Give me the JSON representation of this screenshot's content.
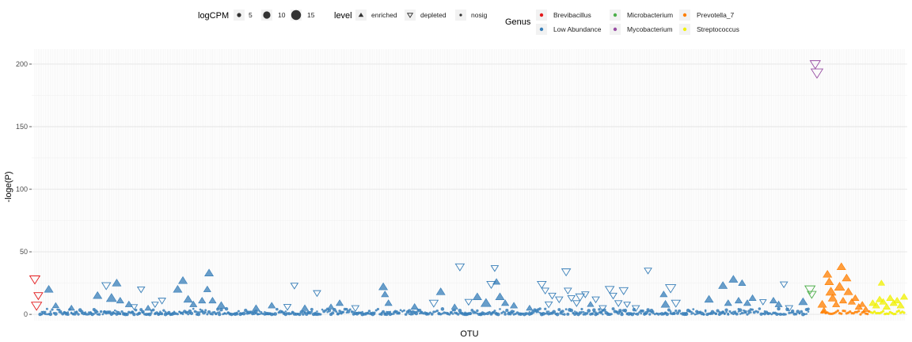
{
  "chart_data": {
    "type": "scatter",
    "title": "",
    "xlabel": "OTU",
    "ylabel": "-loge(P)",
    "ylim": [
      -5,
      212
    ],
    "y_ticks": [
      0,
      50,
      100,
      150,
      200
    ],
    "n_otus": 500,
    "grid": true,
    "legend_position": "top",
    "legends": {
      "size": {
        "title": "logCPM",
        "entries": [
          {
            "label": "5",
            "value": 5
          },
          {
            "label": "10",
            "value": 10
          },
          {
            "label": "15",
            "value": 15
          }
        ]
      },
      "shape": {
        "title": "level",
        "entries": [
          {
            "label": "enriched",
            "shape": "triangle-up"
          },
          {
            "label": "depleted",
            "shape": "triangle-down"
          },
          {
            "label": "nosig",
            "shape": "dot"
          }
        ]
      },
      "color": {
        "title": "Genus",
        "entries": [
          {
            "label": "Brevibacillus",
            "color": "#e41a1c"
          },
          {
            "label": "Low Abundance",
            "color": "#377eb8"
          },
          {
            "label": "Microbacterium",
            "color": "#4daf4a"
          },
          {
            "label": "Mycobacterium",
            "color": "#984ea3"
          },
          {
            "label": "Prevotella_7",
            "color": "#ff7f00"
          },
          {
            "label": "Streptococcus",
            "color": "#f0f000"
          }
        ]
      }
    },
    "genus_ranges": [
      {
        "genus": "Brevibacillus",
        "x": [
          1,
          3
        ]
      },
      {
        "genus": "Low Abundance",
        "x": [
          4,
          445
        ]
      },
      {
        "genus": "Microbacterium",
        "x": [
          446,
          448
        ]
      },
      {
        "genus": "Mycobacterium",
        "x": [
          449,
          452
        ]
      },
      {
        "genus": "Prevotella_7",
        "x": [
          453,
          480
        ]
      },
      {
        "genus": "Streptococcus",
        "x": [
          481,
          500
        ]
      }
    ],
    "points": [
      {
        "x": 1,
        "y": 28,
        "level": "depleted",
        "genus": "Brevibacillus",
        "logCPM": 10
      },
      {
        "x": 2,
        "y": 7,
        "level": "depleted",
        "genus": "Brevibacillus",
        "logCPM": 10
      },
      {
        "x": 3,
        "y": 15,
        "level": "depleted",
        "genus": "Brevibacillus",
        "logCPM": 8
      },
      {
        "x": 9,
        "y": 20,
        "level": "enriched",
        "genus": "Low Abundance",
        "logCPM": 8
      },
      {
        "x": 13,
        "y": 7,
        "level": "enriched",
        "genus": "Low Abundance",
        "logCPM": 5
      },
      {
        "x": 22,
        "y": 5,
        "level": "enriched",
        "genus": "Low Abundance",
        "logCPM": 5
      },
      {
        "x": 37,
        "y": 15,
        "level": "enriched",
        "genus": "Low Abundance",
        "logCPM": 8
      },
      {
        "x": 42,
        "y": 23,
        "level": "depleted",
        "genus": "Low Abundance",
        "logCPM": 8
      },
      {
        "x": 45,
        "y": 13,
        "level": "enriched",
        "genus": "Low Abundance",
        "logCPM": 10
      },
      {
        "x": 48,
        "y": 25,
        "level": "enriched",
        "genus": "Low Abundance",
        "logCPM": 8
      },
      {
        "x": 50,
        "y": 11,
        "level": "enriched",
        "genus": "Low Abundance",
        "logCPM": 6
      },
      {
        "x": 55,
        "y": 8,
        "level": "enriched",
        "genus": "Low Abundance",
        "logCPM": 6
      },
      {
        "x": 58,
        "y": 6,
        "level": "depleted",
        "genus": "Low Abundance",
        "logCPM": 5
      },
      {
        "x": 62,
        "y": 20,
        "level": "depleted",
        "genus": "Low Abundance",
        "logCPM": 6
      },
      {
        "x": 66,
        "y": 5,
        "level": "enriched",
        "genus": "Low Abundance",
        "logCPM": 5
      },
      {
        "x": 70,
        "y": 8,
        "level": "depleted",
        "genus": "Low Abundance",
        "logCPM": 5
      },
      {
        "x": 74,
        "y": 11,
        "level": "depleted",
        "genus": "Low Abundance",
        "logCPM": 6
      },
      {
        "x": 83,
        "y": 20,
        "level": "enriched",
        "genus": "Low Abundance",
        "logCPM": 8
      },
      {
        "x": 86,
        "y": 27,
        "level": "enriched",
        "genus": "Low Abundance",
        "logCPM": 8
      },
      {
        "x": 89,
        "y": 12,
        "level": "enriched",
        "genus": "Low Abundance",
        "logCPM": 8
      },
      {
        "x": 92,
        "y": 8,
        "level": "enriched",
        "genus": "Low Abundance",
        "logCPM": 6
      },
      {
        "x": 97,
        "y": 11,
        "level": "enriched",
        "genus": "Low Abundance",
        "logCPM": 6
      },
      {
        "x": 100,
        "y": 20,
        "level": "enriched",
        "genus": "Low Abundance",
        "logCPM": 6
      },
      {
        "x": 101,
        "y": 33,
        "level": "enriched",
        "genus": "Low Abundance",
        "logCPM": 8
      },
      {
        "x": 103,
        "y": 11,
        "level": "enriched",
        "genus": "Low Abundance",
        "logCPM": 6
      },
      {
        "x": 108,
        "y": 7,
        "level": "enriched",
        "genus": "Low Abundance",
        "logCPM": 8
      },
      {
        "x": 128,
        "y": 5,
        "level": "enriched",
        "genus": "Low Abundance",
        "logCPM": 6
      },
      {
        "x": 137,
        "y": 7,
        "level": "enriched",
        "genus": "Low Abundance",
        "logCPM": 6
      },
      {
        "x": 146,
        "y": 6,
        "level": "depleted",
        "genus": "Low Abundance",
        "logCPM": 6
      },
      {
        "x": 150,
        "y": 23,
        "level": "depleted",
        "genus": "Low Abundance",
        "logCPM": 6
      },
      {
        "x": 156,
        "y": 5,
        "level": "enriched",
        "genus": "Low Abundance",
        "logCPM": 6
      },
      {
        "x": 163,
        "y": 17,
        "level": "depleted",
        "genus": "Low Abundance",
        "logCPM": 6
      },
      {
        "x": 171,
        "y": 6,
        "level": "enriched",
        "genus": "Low Abundance",
        "logCPM": 5
      },
      {
        "x": 176,
        "y": 9,
        "level": "enriched",
        "genus": "Low Abundance",
        "logCPM": 6
      },
      {
        "x": 185,
        "y": 5,
        "level": "depleted",
        "genus": "Low Abundance",
        "logCPM": 6
      },
      {
        "x": 201,
        "y": 22,
        "level": "enriched",
        "genus": "Low Abundance",
        "logCPM": 8
      },
      {
        "x": 202,
        "y": 16,
        "level": "enriched",
        "genus": "Low Abundance",
        "logCPM": 6
      },
      {
        "x": 204,
        "y": 9,
        "level": "enriched",
        "genus": "Low Abundance",
        "logCPM": 6
      },
      {
        "x": 219,
        "y": 6,
        "level": "enriched",
        "genus": "Low Abundance",
        "logCPM": 6
      },
      {
        "x": 230,
        "y": 9,
        "level": "depleted",
        "genus": "Low Abundance",
        "logCPM": 8
      },
      {
        "x": 234,
        "y": 18,
        "level": "enriched",
        "genus": "Low Abundance",
        "logCPM": 8
      },
      {
        "x": 242,
        "y": 6,
        "level": "enriched",
        "genus": "Low Abundance",
        "logCPM": 5
      },
      {
        "x": 245,
        "y": 38,
        "level": "depleted",
        "genus": "Low Abundance",
        "logCPM": 8
      },
      {
        "x": 250,
        "y": 10,
        "level": "depleted",
        "genus": "Low Abundance",
        "logCPM": 6
      },
      {
        "x": 255,
        "y": 14,
        "level": "enriched",
        "genus": "Low Abundance",
        "logCPM": 8
      },
      {
        "x": 260,
        "y": 9,
        "level": "enriched",
        "genus": "Low Abundance",
        "logCPM": 10
      },
      {
        "x": 263,
        "y": 24,
        "level": "depleted",
        "genus": "Low Abundance",
        "logCPM": 8
      },
      {
        "x": 265,
        "y": 37,
        "level": "depleted",
        "genus": "Low Abundance",
        "logCPM": 6
      },
      {
        "x": 266,
        "y": 26,
        "level": "enriched",
        "genus": "Low Abundance",
        "logCPM": 6
      },
      {
        "x": 268,
        "y": 14,
        "level": "enriched",
        "genus": "Low Abundance",
        "logCPM": 8
      },
      {
        "x": 271,
        "y": 9,
        "level": "enriched",
        "genus": "Low Abundance",
        "logCPM": 6
      },
      {
        "x": 276,
        "y": 7,
        "level": "enriched",
        "genus": "Low Abundance",
        "logCPM": 6
      },
      {
        "x": 285,
        "y": 5,
        "level": "enriched",
        "genus": "Low Abundance",
        "logCPM": 5
      },
      {
        "x": 292,
        "y": 24,
        "level": "depleted",
        "genus": "Low Abundance",
        "logCPM": 8
      },
      {
        "x": 294,
        "y": 19,
        "level": "depleted",
        "genus": "Low Abundance",
        "logCPM": 6
      },
      {
        "x": 296,
        "y": 8,
        "level": "depleted",
        "genus": "Low Abundance",
        "logCPM": 6
      },
      {
        "x": 298,
        "y": 15,
        "level": "depleted",
        "genus": "Low Abundance",
        "logCPM": 6
      },
      {
        "x": 302,
        "y": 12,
        "level": "depleted",
        "genus": "Low Abundance",
        "logCPM": 6
      },
      {
        "x": 306,
        "y": 34,
        "level": "depleted",
        "genus": "Low Abundance",
        "logCPM": 8
      },
      {
        "x": 307,
        "y": 19,
        "level": "depleted",
        "genus": "Low Abundance",
        "logCPM": 6
      },
      {
        "x": 309,
        "y": 13,
        "level": "depleted",
        "genus": "Low Abundance",
        "logCPM": 6
      },
      {
        "x": 312,
        "y": 9,
        "level": "depleted",
        "genus": "Low Abundance",
        "logCPM": 6
      },
      {
        "x": 314,
        "y": 14,
        "level": "depleted",
        "genus": "Low Abundance",
        "logCPM": 8
      },
      {
        "x": 317,
        "y": 16,
        "level": "depleted",
        "genus": "Low Abundance",
        "logCPM": 6
      },
      {
        "x": 320,
        "y": 8,
        "level": "enriched",
        "genus": "Low Abundance",
        "logCPM": 5
      },
      {
        "x": 323,
        "y": 12,
        "level": "depleted",
        "genus": "Low Abundance",
        "logCPM": 6
      },
      {
        "x": 327,
        "y": 5,
        "level": "depleted",
        "genus": "Low Abundance",
        "logCPM": 6
      },
      {
        "x": 331,
        "y": 20,
        "level": "depleted",
        "genus": "Low Abundance",
        "logCPM": 8
      },
      {
        "x": 333,
        "y": 15,
        "level": "depleted",
        "genus": "Low Abundance",
        "logCPM": 6
      },
      {
        "x": 336,
        "y": 9,
        "level": "depleted",
        "genus": "Low Abundance",
        "logCPM": 6
      },
      {
        "x": 339,
        "y": 19,
        "level": "depleted",
        "genus": "Low Abundance",
        "logCPM": 8
      },
      {
        "x": 341,
        "y": 8,
        "level": "depleted",
        "genus": "Low Abundance",
        "logCPM": 5
      },
      {
        "x": 346,
        "y": 5,
        "level": "depleted",
        "genus": "Low Abundance",
        "logCPM": 6
      },
      {
        "x": 353,
        "y": 35,
        "level": "depleted",
        "genus": "Low Abundance",
        "logCPM": 6
      },
      {
        "x": 362,
        "y": 16,
        "level": "enriched",
        "genus": "Low Abundance",
        "logCPM": 6
      },
      {
        "x": 363,
        "y": 8,
        "level": "enriched",
        "genus": "Low Abundance",
        "logCPM": 8
      },
      {
        "x": 366,
        "y": 21,
        "level": "depleted",
        "genus": "Low Abundance",
        "logCPM": 10
      },
      {
        "x": 369,
        "y": 9,
        "level": "depleted",
        "genus": "Low Abundance",
        "logCPM": 8
      },
      {
        "x": 388,
        "y": 12,
        "level": "enriched",
        "genus": "Low Abundance",
        "logCPM": 8
      },
      {
        "x": 396,
        "y": 23,
        "level": "enriched",
        "genus": "Low Abundance",
        "logCPM": 8
      },
      {
        "x": 399,
        "y": 9,
        "level": "enriched",
        "genus": "Low Abundance",
        "logCPM": 6
      },
      {
        "x": 402,
        "y": 28,
        "level": "enriched",
        "genus": "Low Abundance",
        "logCPM": 8
      },
      {
        "x": 405,
        "y": 11,
        "level": "enriched",
        "genus": "Low Abundance",
        "logCPM": 6
      },
      {
        "x": 407,
        "y": 25,
        "level": "enriched",
        "genus": "Low Abundance",
        "logCPM": 6
      },
      {
        "x": 410,
        "y": 9,
        "level": "enriched",
        "genus": "Low Abundance",
        "logCPM": 6
      },
      {
        "x": 413,
        "y": 13,
        "level": "enriched",
        "genus": "Low Abundance",
        "logCPM": 6
      },
      {
        "x": 419,
        "y": 10,
        "level": "depleted",
        "genus": "Low Abundance",
        "logCPM": 5
      },
      {
        "x": 425,
        "y": 11,
        "level": "enriched",
        "genus": "Low Abundance",
        "logCPM": 6
      },
      {
        "x": 428,
        "y": 8,
        "level": "enriched",
        "genus": "Low Abundance",
        "logCPM": 6
      },
      {
        "x": 431,
        "y": 24,
        "level": "depleted",
        "genus": "Low Abundance",
        "logCPM": 6
      },
      {
        "x": 434,
        "y": 5,
        "level": "depleted",
        "genus": "Low Abundance",
        "logCPM": 6
      },
      {
        "x": 442,
        "y": 10,
        "level": "enriched",
        "genus": "Low Abundance",
        "logCPM": 8
      },
      {
        "x": 446,
        "y": 20,
        "level": "depleted",
        "genus": "Microbacterium",
        "logCPM": 10
      },
      {
        "x": 447,
        "y": 16,
        "level": "depleted",
        "genus": "Microbacterium",
        "logCPM": 8
      },
      {
        "x": 449,
        "y": 200,
        "level": "depleted",
        "genus": "Mycobacterium",
        "logCPM": 10
      },
      {
        "x": 450,
        "y": 193,
        "level": "depleted",
        "genus": "Mycobacterium",
        "logCPM": 12
      },
      {
        "x": 453,
        "y": 8,
        "level": "enriched",
        "genus": "Prevotella_7",
        "logCPM": 8
      },
      {
        "x": 454,
        "y": 3,
        "level": "enriched",
        "genus": "Prevotella_7",
        "logCPM": 6
      },
      {
        "x": 456,
        "y": 32,
        "level": "enriched",
        "genus": "Prevotella_7",
        "logCPM": 8
      },
      {
        "x": 457,
        "y": 26,
        "level": "enriched",
        "genus": "Prevotella_7",
        "logCPM": 8
      },
      {
        "x": 458,
        "y": 18,
        "level": "enriched",
        "genus": "Prevotella_7",
        "logCPM": 10
      },
      {
        "x": 459,
        "y": 13,
        "level": "enriched",
        "genus": "Prevotella_7",
        "logCPM": 8
      },
      {
        "x": 461,
        "y": 8,
        "level": "enriched",
        "genus": "Prevotella_7",
        "logCPM": 6
      },
      {
        "x": 463,
        "y": 22,
        "level": "enriched",
        "genus": "Prevotella_7",
        "logCPM": 10
      },
      {
        "x": 464,
        "y": 38,
        "level": "enriched",
        "genus": "Prevotella_7",
        "logCPM": 8
      },
      {
        "x": 465,
        "y": 11,
        "level": "enriched",
        "genus": "Prevotella_7",
        "logCPM": 6
      },
      {
        "x": 467,
        "y": 29,
        "level": "enriched",
        "genus": "Prevotella_7",
        "logCPM": 8
      },
      {
        "x": 468,
        "y": 18,
        "level": "enriched",
        "genus": "Prevotella_7",
        "logCPM": 8
      },
      {
        "x": 470,
        "y": 10,
        "level": "enriched",
        "genus": "Prevotella_7",
        "logCPM": 6
      },
      {
        "x": 472,
        "y": 13,
        "level": "enriched",
        "genus": "Prevotella_7",
        "logCPM": 6
      },
      {
        "x": 474,
        "y": 6,
        "level": "enriched",
        "genus": "Prevotella_7",
        "logCPM": 6
      },
      {
        "x": 476,
        "y": 8,
        "level": "enriched",
        "genus": "Prevotella_7",
        "logCPM": 5
      },
      {
        "x": 478,
        "y": 4,
        "level": "enriched",
        "genus": "Prevotella_7",
        "logCPM": 5
      },
      {
        "x": 482,
        "y": 9,
        "level": "enriched",
        "genus": "Streptococcus",
        "logCPM": 6
      },
      {
        "x": 484,
        "y": 7,
        "level": "enriched",
        "genus": "Streptococcus",
        "logCPM": 6
      },
      {
        "x": 486,
        "y": 12,
        "level": "enriched",
        "genus": "Streptococcus",
        "logCPM": 6
      },
      {
        "x": 487,
        "y": 25,
        "level": "enriched",
        "genus": "Streptococcus",
        "logCPM": 5
      },
      {
        "x": 488,
        "y": 10,
        "level": "enriched",
        "genus": "Streptococcus",
        "logCPM": 6
      },
      {
        "x": 490,
        "y": 6,
        "level": "enriched",
        "genus": "Streptococcus",
        "logCPM": 6
      },
      {
        "x": 492,
        "y": 13,
        "level": "enriched",
        "genus": "Streptococcus",
        "logCPM": 6
      },
      {
        "x": 494,
        "y": 9,
        "level": "enriched",
        "genus": "Streptococcus",
        "logCPM": 6
      },
      {
        "x": 496,
        "y": 11,
        "level": "enriched",
        "genus": "Streptococcus",
        "logCPM": 6
      },
      {
        "x": 498,
        "y": 7,
        "level": "enriched",
        "genus": "Streptococcus",
        "logCPM": 6
      },
      {
        "x": 500,
        "y": 14,
        "level": "enriched",
        "genus": "Streptococcus",
        "logCPM": 6
      }
    ]
  }
}
